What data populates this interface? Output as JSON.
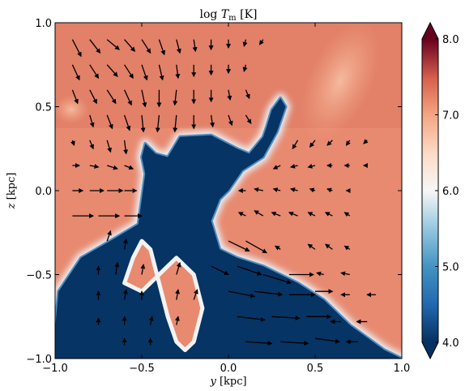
{
  "chart_data": {
    "type": "heatmap",
    "title_base": "log",
    "title_var": "T",
    "title_sub": "m",
    "title_unit": "[K]",
    "xlabel_var": "y",
    "xlabel_unit": "[kpc]",
    "ylabel_var": "z",
    "ylabel_unit": "[kpc]",
    "xlim": [
      -1.0,
      1.0
    ],
    "ylim": [
      -1.0,
      1.0
    ],
    "x_ticks": [
      -1.0,
      -0.5,
      0.0,
      0.5,
      1.0
    ],
    "x_tick_labels": [
      "−1.0",
      "−0.5",
      "0.0",
      "0.5",
      "1.0"
    ],
    "y_ticks": [
      -1.0,
      -0.5,
      0.0,
      0.5,
      1.0
    ],
    "y_tick_labels": [
      "−1.0",
      "−0.5",
      "0.0",
      "0.5",
      "1.0"
    ],
    "colorbar": {
      "min": 4.0,
      "max": 8.0,
      "ticks": [
        4.0,
        5.0,
        6.0,
        7.0,
        8.0
      ],
      "tick_labels": [
        "4.0",
        "5.0",
        "6.0",
        "7.0",
        "8.0"
      ],
      "colormap": "RdBu_r",
      "extend": "both"
    },
    "background_value": 6.8,
    "cold_gas_paths": [
      {
        "name": "outer-cloud-boundary",
        "points": [
          [
            -1.0,
            -0.82
          ],
          [
            -0.98,
            -0.6
          ],
          [
            -0.85,
            -0.4
          ],
          [
            -0.65,
            -0.28
          ],
          [
            -0.52,
            -0.2
          ],
          [
            -0.5,
            -0.05
          ],
          [
            -0.48,
            0.1
          ],
          [
            -0.5,
            0.2
          ],
          [
            -0.48,
            0.28
          ],
          [
            -0.42,
            0.22
          ],
          [
            -0.35,
            0.2
          ],
          [
            -0.28,
            0.32
          ],
          [
            -0.1,
            0.33
          ],
          [
            0.05,
            0.25
          ],
          [
            0.12,
            0.22
          ],
          [
            0.2,
            0.32
          ],
          [
            0.22,
            0.38
          ],
          [
            0.25,
            0.48
          ],
          [
            0.3,
            0.55
          ],
          [
            0.33,
            0.5
          ],
          [
            0.28,
            0.35
          ],
          [
            0.2,
            0.2
          ],
          [
            0.08,
            0.12
          ],
          [
            0.0,
            0.0
          ],
          [
            -0.05,
            -0.05
          ],
          [
            -0.1,
            -0.18
          ],
          [
            -0.05,
            -0.35
          ],
          [
            0.05,
            -0.4
          ],
          [
            0.2,
            -0.45
          ],
          [
            0.4,
            -0.55
          ],
          [
            0.55,
            -0.65
          ],
          [
            0.7,
            -0.8
          ],
          [
            0.9,
            -0.95
          ],
          [
            1.0,
            -1.0
          ],
          [
            -1.0,
            -1.0
          ]
        ]
      },
      {
        "name": "lower-channel-gap",
        "points": [
          [
            -0.6,
            -0.55
          ],
          [
            -0.55,
            -0.4
          ],
          [
            -0.5,
            -0.3
          ],
          [
            -0.45,
            -0.35
          ],
          [
            -0.4,
            -0.55
          ],
          [
            -0.35,
            -0.75
          ],
          [
            -0.3,
            -0.9
          ],
          [
            -0.25,
            -0.95
          ],
          [
            -0.2,
            -0.9
          ],
          [
            -0.15,
            -0.7
          ],
          [
            -0.2,
            -0.5
          ],
          [
            -0.3,
            -0.4
          ],
          [
            -0.35,
            -0.45
          ],
          [
            -0.5,
            -0.6
          ]
        ]
      }
    ],
    "arrow_field_description": "velocity vectors",
    "velocity_arrows": [
      {
        "x": -0.9,
        "y": 0.9,
        "u": 0.05,
        "v": -0.1
      },
      {
        "x": -0.8,
        "y": 0.9,
        "u": 0.06,
        "v": -0.08
      },
      {
        "x": -0.7,
        "y": 0.9,
        "u": 0.07,
        "v": -0.06
      },
      {
        "x": -0.6,
        "y": 0.9,
        "u": 0.06,
        "v": -0.07
      },
      {
        "x": -0.5,
        "y": 0.9,
        "u": 0.05,
        "v": -0.08
      },
      {
        "x": -0.4,
        "y": 0.9,
        "u": 0.03,
        "v": -0.09
      },
      {
        "x": -0.3,
        "y": 0.9,
        "u": 0.02,
        "v": -0.08
      },
      {
        "x": -0.2,
        "y": 0.9,
        "u": 0.01,
        "v": -0.07
      },
      {
        "x": -0.1,
        "y": 0.9,
        "u": 0.0,
        "v": -0.06
      },
      {
        "x": 0.0,
        "y": 0.9,
        "u": 0.0,
        "v": -0.05
      },
      {
        "x": 0.1,
        "y": 0.9,
        "u": -0.01,
        "v": -0.04
      },
      {
        "x": 0.2,
        "y": 0.9,
        "u": -0.02,
        "v": -0.03
      },
      {
        "x": -0.9,
        "y": 0.75,
        "u": 0.04,
        "v": -0.09
      },
      {
        "x": -0.8,
        "y": 0.75,
        "u": 0.05,
        "v": -0.08
      },
      {
        "x": -0.7,
        "y": 0.75,
        "u": 0.06,
        "v": -0.07
      },
      {
        "x": -0.6,
        "y": 0.75,
        "u": 0.05,
        "v": -0.08
      },
      {
        "x": -0.5,
        "y": 0.75,
        "u": 0.03,
        "v": -0.09
      },
      {
        "x": -0.4,
        "y": 0.75,
        "u": 0.02,
        "v": -0.09
      },
      {
        "x": -0.3,
        "y": 0.75,
        "u": 0.01,
        "v": -0.08
      },
      {
        "x": -0.2,
        "y": 0.75,
        "u": 0.0,
        "v": -0.07
      },
      {
        "x": -0.1,
        "y": 0.75,
        "u": 0.0,
        "v": -0.06
      },
      {
        "x": 0.0,
        "y": 0.75,
        "u": 0.0,
        "v": -0.05
      },
      {
        "x": 0.1,
        "y": 0.75,
        "u": -0.01,
        "v": -0.04
      },
      {
        "x": -0.9,
        "y": 0.6,
        "u": 0.03,
        "v": -0.08
      },
      {
        "x": -0.8,
        "y": 0.6,
        "u": 0.04,
        "v": -0.08
      },
      {
        "x": -0.7,
        "y": 0.6,
        "u": 0.05,
        "v": -0.08
      },
      {
        "x": -0.6,
        "y": 0.6,
        "u": 0.04,
        "v": -0.09
      },
      {
        "x": -0.5,
        "y": 0.6,
        "u": 0.02,
        "v": -0.1
      },
      {
        "x": -0.4,
        "y": 0.6,
        "u": 0.0,
        "v": -0.1
      },
      {
        "x": -0.3,
        "y": 0.6,
        "u": -0.01,
        "v": -0.09
      },
      {
        "x": -0.2,
        "y": 0.6,
        "u": 0.0,
        "v": -0.08
      },
      {
        "x": -0.1,
        "y": 0.6,
        "u": 0.0,
        "v": -0.07
      },
      {
        "x": 0.0,
        "y": 0.6,
        "u": 0.01,
        "v": -0.06
      },
      {
        "x": 0.1,
        "y": 0.6,
        "u": 0.02,
        "v": -0.05
      },
      {
        "x": -0.8,
        "y": 0.45,
        "u": 0.02,
        "v": -0.07
      },
      {
        "x": -0.7,
        "y": 0.45,
        "u": 0.03,
        "v": -0.08
      },
      {
        "x": -0.6,
        "y": 0.45,
        "u": 0.03,
        "v": -0.09
      },
      {
        "x": -0.5,
        "y": 0.45,
        "u": 0.01,
        "v": -0.1
      },
      {
        "x": -0.4,
        "y": 0.45,
        "u": -0.01,
        "v": -0.1
      },
      {
        "x": -0.3,
        "y": 0.45,
        "u": -0.01,
        "v": -0.1
      },
      {
        "x": -0.2,
        "y": 0.45,
        "u": 0.0,
        "v": -0.08
      },
      {
        "x": -0.1,
        "y": 0.45,
        "u": 0.01,
        "v": -0.07
      },
      {
        "x": 0.0,
        "y": 0.45,
        "u": 0.02,
        "v": -0.06
      },
      {
        "x": 0.1,
        "y": 0.45,
        "u": 0.03,
        "v": -0.05
      },
      {
        "x": -0.9,
        "y": 0.3,
        "u": 0.01,
        "v": -0.03
      },
      {
        "x": -0.8,
        "y": 0.3,
        "u": 0.02,
        "v": -0.05
      },
      {
        "x": -0.7,
        "y": 0.3,
        "u": 0.02,
        "v": -0.07
      },
      {
        "x": -0.6,
        "y": 0.3,
        "u": 0.01,
        "v": -0.08
      },
      {
        "x": 0.4,
        "y": 0.3,
        "u": -0.03,
        "v": -0.05
      },
      {
        "x": 0.5,
        "y": 0.3,
        "u": -0.03,
        "v": -0.04
      },
      {
        "x": 0.6,
        "y": 0.3,
        "u": -0.03,
        "v": -0.03
      },
      {
        "x": 0.7,
        "y": 0.3,
        "u": -0.02,
        "v": -0.03
      },
      {
        "x": 0.8,
        "y": 0.3,
        "u": -0.02,
        "v": -0.02
      },
      {
        "x": -0.9,
        "y": 0.15,
        "u": 0.04,
        "v": 0.0
      },
      {
        "x": -0.8,
        "y": 0.15,
        "u": 0.05,
        "v": -0.01
      },
      {
        "x": -0.7,
        "y": 0.15,
        "u": 0.06,
        "v": -0.02
      },
      {
        "x": -0.6,
        "y": 0.15,
        "u": 0.05,
        "v": -0.02
      },
      {
        "x": 0.3,
        "y": 0.15,
        "u": -0.04,
        "v": -0.02
      },
      {
        "x": 0.4,
        "y": 0.15,
        "u": -0.04,
        "v": -0.01
      },
      {
        "x": 0.5,
        "y": 0.15,
        "u": -0.04,
        "v": -0.01
      },
      {
        "x": 0.6,
        "y": 0.15,
        "u": -0.03,
        "v": 0.0
      },
      {
        "x": 0.7,
        "y": 0.15,
        "u": -0.03,
        "v": 0.0
      },
      {
        "x": 0.8,
        "y": 0.15,
        "u": -0.02,
        "v": 0.0
      },
      {
        "x": -0.9,
        "y": 0.0,
        "u": 0.06,
        "v": 0.0
      },
      {
        "x": -0.8,
        "y": 0.0,
        "u": 0.08,
        "v": 0.0
      },
      {
        "x": -0.7,
        "y": 0.0,
        "u": 0.09,
        "v": 0.0
      },
      {
        "x": -0.6,
        "y": 0.0,
        "u": 0.07,
        "v": 0.0
      },
      {
        "x": 0.1,
        "y": 0.0,
        "u": -0.04,
        "v": 0.0
      },
      {
        "x": 0.2,
        "y": 0.0,
        "u": -0.05,
        "v": 0.01
      },
      {
        "x": 0.3,
        "y": 0.0,
        "u": -0.04,
        "v": 0.01
      },
      {
        "x": 0.4,
        "y": 0.0,
        "u": -0.04,
        "v": 0.01
      },
      {
        "x": 0.5,
        "y": 0.0,
        "u": -0.03,
        "v": 0.01
      },
      {
        "x": 0.6,
        "y": 0.0,
        "u": -0.03,
        "v": 0.01
      },
      {
        "x": 0.7,
        "y": 0.0,
        "u": -0.02,
        "v": 0.0
      },
      {
        "x": -0.9,
        "y": -0.15,
        "u": 0.12,
        "v": 0.0
      },
      {
        "x": -0.75,
        "y": -0.15,
        "u": 0.12,
        "v": 0.0
      },
      {
        "x": -0.6,
        "y": -0.15,
        "u": 0.1,
        "v": 0.0
      },
      {
        "x": 0.1,
        "y": -0.15,
        "u": -0.04,
        "v": 0.02
      },
      {
        "x": 0.2,
        "y": -0.15,
        "u": -0.05,
        "v": 0.03
      },
      {
        "x": 0.3,
        "y": -0.15,
        "u": -0.05,
        "v": 0.02
      },
      {
        "x": 0.4,
        "y": -0.15,
        "u": -0.05,
        "v": 0.02
      },
      {
        "x": 0.5,
        "y": -0.15,
        "u": -0.04,
        "v": 0.02
      },
      {
        "x": 0.6,
        "y": -0.15,
        "u": -0.04,
        "v": 0.02
      },
      {
        "x": 0.7,
        "y": -0.15,
        "u": -0.03,
        "v": 0.02
      },
      {
        "x": -0.7,
        "y": -0.3,
        "u": 0.02,
        "v": 0.06
      },
      {
        "x": -0.6,
        "y": -0.35,
        "u": 0.01,
        "v": 0.06
      },
      {
        "x": 0.0,
        "y": -0.3,
        "u": 0.12,
        "v": -0.06
      },
      {
        "x": 0.1,
        "y": -0.3,
        "u": 0.12,
        "v": -0.07
      },
      {
        "x": 0.3,
        "y": -0.35,
        "u": -0.03,
        "v": 0.02
      },
      {
        "x": 0.5,
        "y": -0.35,
        "u": -0.04,
        "v": 0.03
      },
      {
        "x": 0.6,
        "y": -0.35,
        "u": -0.04,
        "v": 0.03
      },
      {
        "x": 0.7,
        "y": -0.35,
        "u": -0.03,
        "v": 0.02
      },
      {
        "x": -0.75,
        "y": -0.5,
        "u": 0.0,
        "v": 0.05
      },
      {
        "x": -0.65,
        "y": -0.5,
        "u": 0.01,
        "v": 0.07
      },
      {
        "x": -0.5,
        "y": -0.5,
        "u": 0.01,
        "v": 0.06
      },
      {
        "x": -0.3,
        "y": -0.5,
        "u": 0.02,
        "v": 0.07
      },
      {
        "x": -0.1,
        "y": -0.45,
        "u": 0.1,
        "v": -0.05
      },
      {
        "x": 0.05,
        "y": -0.45,
        "u": 0.14,
        "v": -0.05
      },
      {
        "x": 0.2,
        "y": -0.5,
        "u": 0.16,
        "v": -0.05
      },
      {
        "x": 0.35,
        "y": -0.5,
        "u": 0.14,
        "v": 0.0
      },
      {
        "x": 0.55,
        "y": -0.5,
        "u": -0.04,
        "v": 0.01
      },
      {
        "x": 0.7,
        "y": -0.5,
        "u": -0.05,
        "v": 0.01
      },
      {
        "x": -0.75,
        "y": -0.65,
        "u": 0.0,
        "v": 0.05
      },
      {
        "x": -0.6,
        "y": -0.65,
        "u": 0.01,
        "v": 0.06
      },
      {
        "x": -0.5,
        "y": -0.65,
        "u": 0.0,
        "v": 0.05
      },
      {
        "x": -0.3,
        "y": -0.65,
        "u": 0.01,
        "v": 0.06
      },
      {
        "x": -0.2,
        "y": -0.65,
        "u": 0.02,
        "v": 0.06
      },
      {
        "x": 0.0,
        "y": -0.6,
        "u": 0.15,
        "v": -0.03
      },
      {
        "x": 0.15,
        "y": -0.6,
        "u": 0.16,
        "v": -0.02
      },
      {
        "x": 0.35,
        "y": -0.62,
        "u": 0.15,
        "v": 0.0
      },
      {
        "x": 0.5,
        "y": -0.6,
        "u": 0.1,
        "v": 0.0
      },
      {
        "x": 0.7,
        "y": -0.62,
        "u": -0.05,
        "v": 0.0
      },
      {
        "x": 0.85,
        "y": -0.62,
        "u": -0.05,
        "v": 0.0
      },
      {
        "x": -0.75,
        "y": -0.8,
        "u": 0.0,
        "v": 0.04
      },
      {
        "x": -0.6,
        "y": -0.8,
        "u": 0.0,
        "v": 0.05
      },
      {
        "x": -0.45,
        "y": -0.8,
        "u": 0.01,
        "v": 0.05
      },
      {
        "x": -0.3,
        "y": -0.8,
        "u": 0.01,
        "v": 0.05
      },
      {
        "x": 0.05,
        "y": -0.75,
        "u": 0.16,
        "v": -0.02
      },
      {
        "x": 0.25,
        "y": -0.75,
        "u": 0.16,
        "v": -0.01
      },
      {
        "x": 0.45,
        "y": -0.75,
        "u": 0.14,
        "v": 0.0
      },
      {
        "x": 0.65,
        "y": -0.78,
        "u": -0.06,
        "v": 0.0
      },
      {
        "x": 0.8,
        "y": -0.78,
        "u": -0.06,
        "v": 0.0
      },
      {
        "x": -0.6,
        "y": -0.92,
        "u": 0.0,
        "v": 0.04
      },
      {
        "x": -0.45,
        "y": -0.92,
        "u": 0.0,
        "v": 0.04
      },
      {
        "x": 0.1,
        "y": -0.9,
        "u": 0.15,
        "v": -0.01
      },
      {
        "x": 0.3,
        "y": -0.9,
        "u": 0.16,
        "v": -0.01
      },
      {
        "x": 0.5,
        "y": -0.88,
        "u": 0.14,
        "v": -0.02
      },
      {
        "x": 0.75,
        "y": -0.9,
        "u": -0.07,
        "v": 0.0
      }
    ]
  }
}
